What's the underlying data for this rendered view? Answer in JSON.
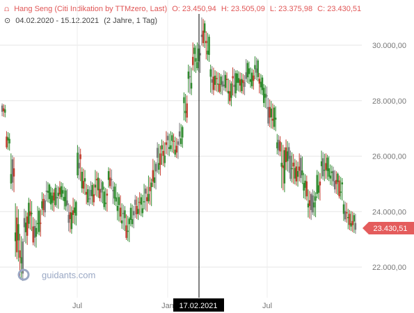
{
  "header": {
    "instrument": "Hang Seng (Citi Indikation by TTMzero, Last)",
    "open": "O: 23.450,94",
    "high": "H: 23.505,09",
    "low": "L: 23.375,98",
    "close": "C: 23.430,51",
    "range": "04.02.2020 - 15.12.2021",
    "period": "(2 Jahre, 1 Tag)"
  },
  "watermark": "guidants.com",
  "crosshair_date": "17.02.2021",
  "last_price_label": "23.430,51",
  "colors": {
    "up": "#2e8b2e",
    "down": "#c0392b",
    "neutral": "#777777",
    "last_price": "#e45c5c",
    "crosshair_bg": "#000000",
    "header": "#e05555"
  },
  "chart_data": {
    "type": "candlestick",
    "title": "Hang Seng (Citi Indikation by TTMzero, Last)",
    "x_tick_labels": [
      "Jul",
      "Jan",
      "Jul"
    ],
    "y_tick_labels": [
      "22.000,00",
      "24.000,00",
      "26.000,00",
      "28.000,00",
      "30.000,00"
    ],
    "yticks": [
      22000,
      24000,
      26000,
      28000,
      30000
    ],
    "ylim": [
      20600,
      31200
    ],
    "grid": true,
    "x_range": [
      "2020-02-04",
      "2021-12-15"
    ],
    "last": 23430.51,
    "series": [
      {
        "values": [
          [
            27400,
            27900
          ],
          [
            26200,
            26900
          ],
          [
            24700,
            26100
          ],
          [
            22200,
            24300
          ],
          [
            21500,
            23200
          ],
          [
            22800,
            24100
          ],
          [
            23300,
            24500
          ],
          [
            22700,
            23800
          ],
          [
            23100,
            24200
          ],
          [
            23800,
            24700
          ],
          [
            24300,
            25100
          ],
          [
            24000,
            24900
          ],
          [
            24100,
            25000
          ],
          [
            24400,
            25100
          ],
          [
            24000,
            24900
          ],
          [
            23200,
            24300
          ],
          [
            23500,
            24500
          ],
          [
            25100,
            26400
          ],
          [
            24600,
            25600
          ],
          [
            24200,
            25000
          ],
          [
            24200,
            25100
          ],
          [
            24500,
            25500
          ],
          [
            24300,
            25200
          ],
          [
            24000,
            24900
          ],
          [
            24800,
            25600
          ],
          [
            24200,
            25100
          ],
          [
            23600,
            24700
          ],
          [
            23300,
            24300
          ],
          [
            22900,
            23900
          ],
          [
            23400,
            24300
          ],
          [
            23700,
            24600
          ],
          [
            23800,
            24700
          ],
          [
            24000,
            25000
          ],
          [
            24200,
            25300
          ],
          [
            24800,
            25900
          ],
          [
            25300,
            26500
          ],
          [
            25600,
            26600
          ],
          [
            26000,
            26900
          ],
          [
            26100,
            26900
          ],
          [
            25900,
            26700
          ],
          [
            26300,
            27200
          ],
          [
            27200,
            28300
          ],
          [
            28200,
            29300
          ],
          [
            29000,
            30100
          ],
          [
            29000,
            30100
          ],
          [
            29900,
            31000
          ],
          [
            29400,
            30500
          ],
          [
            28200,
            29300
          ],
          [
            28300,
            29100
          ],
          [
            28200,
            29000
          ],
          [
            28300,
            29100
          ],
          [
            27800,
            28800
          ],
          [
            28100,
            29200
          ],
          [
            28300,
            29100
          ],
          [
            28200,
            29000
          ],
          [
            28600,
            29500
          ],
          [
            28400,
            29200
          ],
          [
            28700,
            29600
          ],
          [
            28200,
            29000
          ],
          [
            27700,
            28600
          ],
          [
            27000,
            28100
          ],
          [
            26900,
            27900
          ],
          [
            26000,
            26800
          ],
          [
            24700,
            26500
          ],
          [
            25400,
            26600
          ],
          [
            25000,
            26200
          ],
          [
            24900,
            25900
          ],
          [
            25000,
            26100
          ],
          [
            24400,
            25400
          ],
          [
            23700,
            24800
          ],
          [
            23800,
            24800
          ],
          [
            24400,
            25500
          ],
          [
            25100,
            26200
          ],
          [
            25100,
            26100
          ],
          [
            24900,
            25700
          ],
          [
            24600,
            25500
          ],
          [
            24400,
            25300
          ],
          [
            23600,
            24400
          ],
          [
            23300,
            24100
          ],
          [
            23200,
            24000
          ]
        ]
      }
    ]
  }
}
